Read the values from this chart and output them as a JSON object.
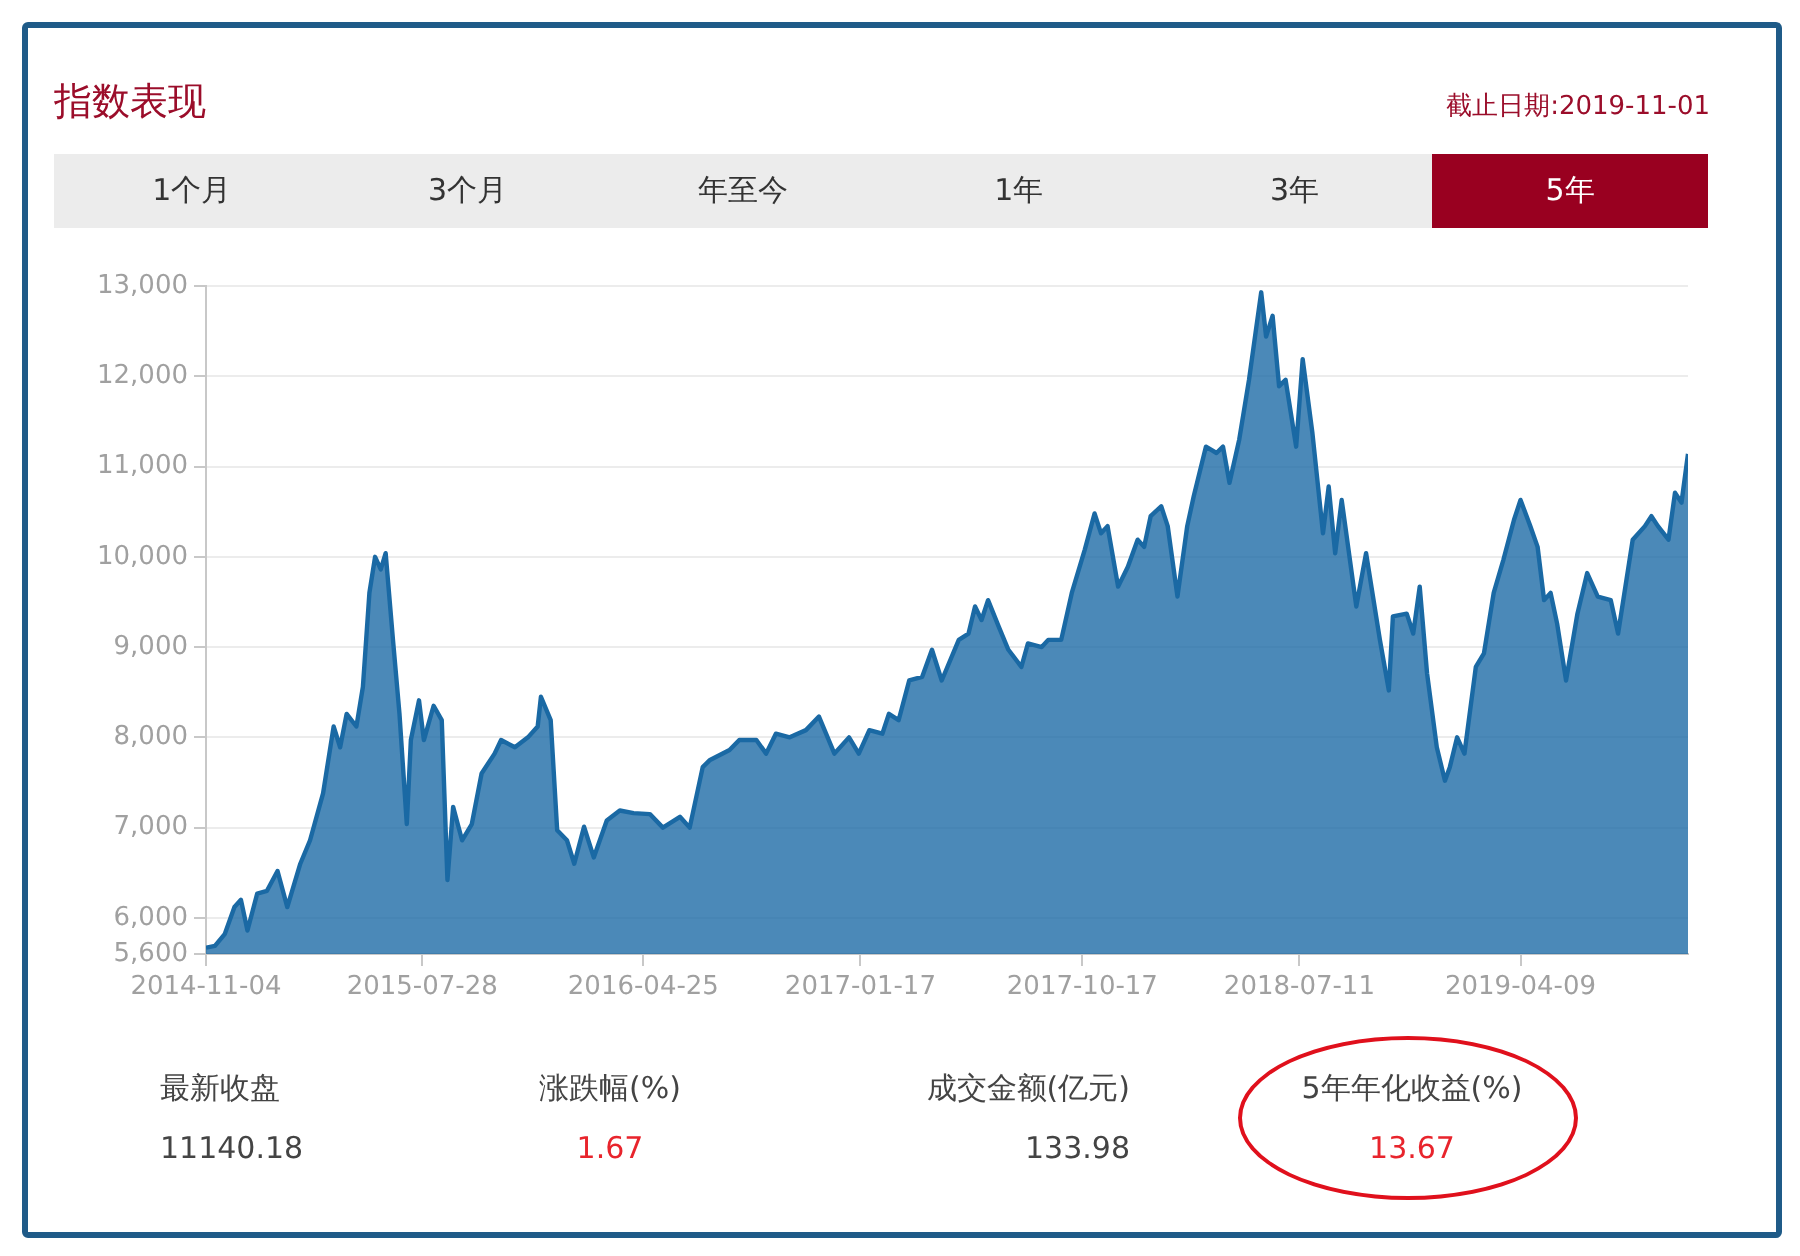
{
  "chart_data": {
    "type": "area",
    "title": "指数表现",
    "annotations": [
      "截止日期:2019-11-01",
      "1个月",
      "3个月",
      "年至今",
      "1年",
      "3年",
      "5年",
      "最新收盘",
      "11140.18",
      "涨跌幅(%)",
      "1.67",
      "成交金额(亿元)",
      "133.98",
      "5年年化收益(%)",
      "13.67"
    ],
    "xlim": [
      "2014-11-04",
      "2019-11-01"
    ],
    "xticks": [
      {
        "value": "2014-11-04",
        "label": "2014-11-04"
      },
      {
        "value": "2015-07-28",
        "label": "2015-07-28"
      },
      {
        "value": "2016-04-25",
        "label": "2016-04-25"
      },
      {
        "value": "2017-01-17",
        "label": "2017-01-17"
      },
      {
        "value": "2017-10-17",
        "label": "2017-10-17"
      },
      {
        "value": "2018-07-11",
        "label": "2018-07-11"
      },
      {
        "value": "2019-04-09",
        "label": "2019-04-09"
      }
    ],
    "ylim": [
      5600,
      13000
    ],
    "yticks": [
      {
        "value": 5600,
        "label": "5,600"
      },
      {
        "value": 6000,
        "label": "6,000"
      },
      {
        "value": 7000,
        "label": "7,000"
      },
      {
        "value": 8000,
        "label": "8,000"
      },
      {
        "value": 9000,
        "label": "9,000"
      },
      {
        "value": 10000,
        "label": "10,000"
      },
      {
        "value": 11000,
        "label": "11,000"
      },
      {
        "value": 12000,
        "label": "12,000"
      },
      {
        "value": 13000,
        "label": "13,000"
      }
    ],
    "grid": "y",
    "legend": false,
    "marker": "none",
    "line_style": "solid",
    "x": [
      "2014-11-04",
      "2014-11-15",
      "2014-11-27",
      "2014-12-09",
      "2014-12-17",
      "2014-12-25",
      "2015-01-06",
      "2015-01-18",
      "2015-01-31",
      "2015-02-12",
      "2015-02-28",
      "2015-03-12",
      "2015-03-28",
      "2015-04-10",
      "2015-04-18",
      "2015-04-26",
      "2015-05-08",
      "2015-05-16",
      "2015-05-24",
      "2015-05-31",
      "2015-06-07",
      "2015-06-13",
      "2015-06-22",
      "2015-06-30",
      "2015-07-09",
      "2015-07-14",
      "2015-07-24",
      "2015-07-30",
      "2015-08-11",
      "2015-08-21",
      "2015-08-28",
      "2015-09-04",
      "2015-09-15",
      "2015-09-27",
      "2015-10-09",
      "2015-10-25",
      "2015-11-02",
      "2015-11-19",
      "2015-12-05",
      "2015-12-17",
      "2015-12-21",
      "2016-01-02",
      "2016-01-10",
      "2016-01-22",
      "2016-01-31",
      "2016-02-12",
      "2016-02-24",
      "2016-03-11",
      "2016-03-27",
      "2016-04-13",
      "2016-05-03",
      "2016-05-19",
      "2016-06-09",
      "2016-06-21",
      "2016-07-07",
      "2016-07-16",
      "2016-08-09",
      "2016-08-21",
      "2016-09-11",
      "2016-09-23",
      "2016-10-05",
      "2016-10-22",
      "2016-11-11",
      "2016-11-27",
      "2016-12-16",
      "2017-01-03",
      "2017-01-15",
      "2017-01-28",
      "2017-02-13",
      "2017-02-21",
      "2017-03-05",
      "2017-03-18",
      "2017-04-03",
      "2017-04-15",
      "2017-04-27",
      "2017-05-18",
      "2017-05-30",
      "2017-06-07",
      "2017-06-15",
      "2017-06-23",
      "2017-07-06",
      "2017-07-18",
      "2017-08-03",
      "2017-08-11",
      "2017-08-28",
      "2017-09-05",
      "2017-09-21",
      "2017-10-04",
      "2017-10-20",
      "2017-11-01",
      "2017-11-09",
      "2017-11-17",
      "2017-11-30",
      "2017-12-12",
      "2017-12-24",
      "2018-01-01",
      "2018-01-09",
      "2018-01-22",
      "2018-01-30",
      "2018-02-11",
      "2018-02-23",
      "2018-03-03",
      "2018-03-18",
      "2018-03-31",
      "2018-04-08",
      "2018-04-16",
      "2018-04-28",
      "2018-05-10",
      "2018-05-18",
      "2018-05-25",
      "2018-05-31",
      "2018-06-08",
      "2018-06-16",
      "2018-06-24",
      "2018-07-07",
      "2018-07-15",
      "2018-07-27",
      "2018-08-09",
      "2018-08-16",
      "2018-08-24",
      "2018-09-01",
      "2018-09-19",
      "2018-10-01",
      "2018-10-18",
      "2018-10-29",
      "2018-11-03",
      "2018-11-20",
      "2018-11-28",
      "2018-12-06",
      "2018-12-15",
      "2018-12-27",
      "2019-01-06",
      "2019-01-12",
      "2019-01-21",
      "2019-01-30",
      "2019-02-13",
      "2019-02-23",
      "2019-03-07",
      "2019-03-19",
      "2019-04-01",
      "2019-04-09",
      "2019-04-21",
      "2019-04-30",
      "2019-05-08",
      "2019-05-16",
      "2019-05-24",
      "2019-06-04",
      "2019-06-18",
      "2019-06-30",
      "2019-07-13",
      "2019-07-29",
      "2019-08-07",
      "2019-08-25",
      "2019-09-09",
      "2019-09-17",
      "2019-09-25",
      "2019-10-08",
      "2019-10-16",
      "2019-10-24",
      "2019-11-01"
    ],
    "series": [
      {
        "color": "#1a69a4",
        "values": [
          5670,
          5690,
          5820,
          6120,
          6200,
          5860,
          6270,
          6300,
          6520,
          6120,
          6600,
          6860,
          7380,
          8120,
          7890,
          8260,
          8120,
          8560,
          9600,
          10000,
          9860,
          10040,
          9080,
          8260,
          7040,
          7970,
          8410,
          7970,
          8350,
          8190,
          6420,
          7230,
          6860,
          7040,
          7600,
          7820,
          7970,
          7890,
          8000,
          8120,
          8450,
          8190,
          6970,
          6860,
          6600,
          7010,
          6670,
          7080,
          7190,
          7160,
          7150,
          7000,
          7120,
          7000,
          7670,
          7750,
          7860,
          7970,
          7970,
          7820,
          8040,
          8000,
          8080,
          8230,
          7820,
          8000,
          7820,
          8080,
          8040,
          8260,
          8190,
          8630,
          8670,
          8970,
          8630,
          9080,
          9150,
          9450,
          9300,
          9520,
          9230,
          8970,
          8780,
          9040,
          9000,
          9080,
          9080,
          9600,
          10080,
          10480,
          10260,
          10340,
          9670,
          9890,
          10190,
          10110,
          10450,
          10560,
          10340,
          9560,
          10340,
          10670,
          11220,
          11150,
          11220,
          10820,
          11300,
          11960,
          12480,
          12930,
          12440,
          12670,
          11890,
          11960,
          11220,
          12190,
          11370,
          10260,
          10780,
          10040,
          10630,
          9450,
          10040,
          9080,
          8520,
          9340,
          9370,
          9150,
          9670,
          8710,
          7890,
          7520,
          7670,
          8000,
          7820,
          8780,
          8930,
          9600,
          9970,
          10410,
          10630,
          10340,
          10110,
          9520,
          9600,
          9260,
          8630,
          9370,
          9820,
          9560,
          9520,
          9150,
          10190,
          10340,
          10450,
          10340,
          10190,
          10710,
          10600,
          11140
        ]
      }
    ]
  }
}
